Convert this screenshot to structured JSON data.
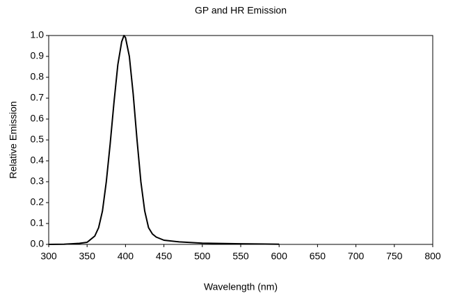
{
  "chart_data": {
    "type": "line",
    "title": "GP and HR Emission",
    "x_label": "Wavelength (nm)",
    "y_label": "Relative Emission",
    "x": [
      300,
      320,
      340,
      350,
      360,
      365,
      370,
      375,
      380,
      385,
      390,
      395,
      398,
      400,
      405,
      410,
      415,
      420,
      425,
      430,
      435,
      440,
      450,
      470,
      500,
      550,
      600
    ],
    "series": [
      {
        "name": "GP and HR Emission",
        "color": "#000000",
        "values": [
          0,
          0.001,
          0.005,
          0.01,
          0.04,
          0.08,
          0.16,
          0.3,
          0.48,
          0.68,
          0.86,
          0.97,
          1.0,
          0.99,
          0.9,
          0.72,
          0.5,
          0.3,
          0.16,
          0.08,
          0.05,
          0.035,
          0.02,
          0.012,
          0.006,
          0.003,
          0.001
        ]
      }
    ],
    "xlim": [
      300,
      800
    ],
    "xticks": [
      300,
      350,
      400,
      450,
      500,
      550,
      600,
      650,
      700,
      750,
      800
    ],
    "ylim": [
      0,
      1
    ],
    "yticks": [
      {
        "value": 0,
        "label": "0.0"
      },
      0.1,
      0.2,
      0.3,
      0.4,
      0.5,
      0.6,
      0.7,
      0.8,
      0.9,
      {
        "value": 1,
        "label": "1.0"
      }
    ]
  }
}
